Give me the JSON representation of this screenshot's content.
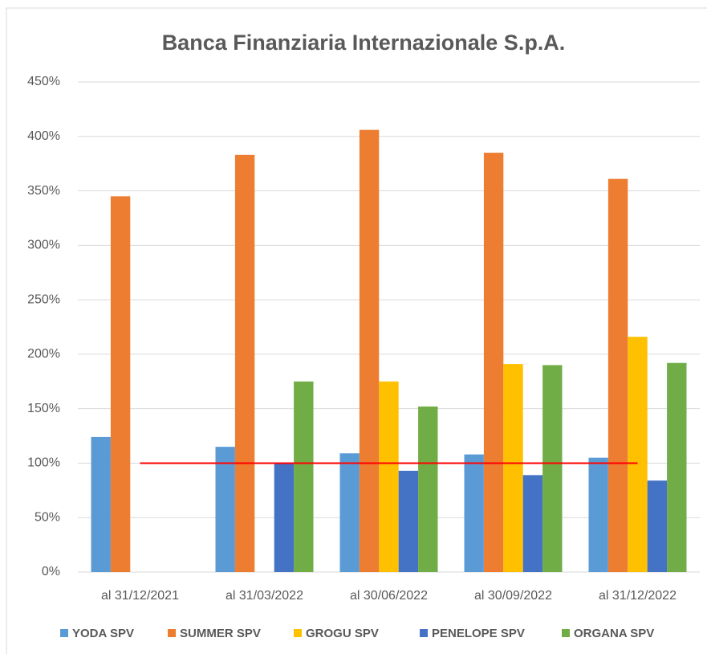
{
  "chart_data": {
    "type": "bar",
    "title": "Banca Finanziaria Internazionale S.p.A.",
    "categories": [
      "al 31/12/2021",
      "al 31/03/2022",
      "al 30/06/2022",
      "al 30/09/2022",
      "al 31/12/2022"
    ],
    "series": [
      {
        "name": "YODA SPV",
        "color": "#5b9bd5",
        "values": [
          124,
          115,
          109,
          108,
          105
        ]
      },
      {
        "name": "SUMMER SPV",
        "color": "#ed7d31",
        "values": [
          345,
          383,
          406,
          385,
          361
        ]
      },
      {
        "name": "GROGU SPV",
        "color": "#ffc000",
        "values": [
          null,
          null,
          175,
          191,
          216
        ]
      },
      {
        "name": "PENELOPE SPV",
        "color": "#4472c4",
        "values": [
          null,
          100,
          93,
          89,
          84
        ]
      },
      {
        "name": "ORGANA SPV",
        "color": "#70ad47",
        "values": [
          null,
          175,
          152,
          190,
          192
        ]
      }
    ],
    "reference_line": {
      "value": 100,
      "color": "#ff0000"
    },
    "ylim": [
      0,
      450
    ],
    "yticks": [
      {
        "value": 0,
        "label": "0%"
      },
      {
        "value": 50,
        "label": "50%"
      },
      {
        "value": 100,
        "label": "100%"
      },
      {
        "value": 150,
        "label": "150%"
      },
      {
        "value": 200,
        "label": "200%"
      },
      {
        "value": 250,
        "label": "250%"
      },
      {
        "value": 300,
        "label": "300%"
      },
      {
        "value": 350,
        "label": "350%"
      },
      {
        "value": 400,
        "label": "400%"
      },
      {
        "value": 450,
        "label": "450%"
      }
    ],
    "grid": true
  }
}
